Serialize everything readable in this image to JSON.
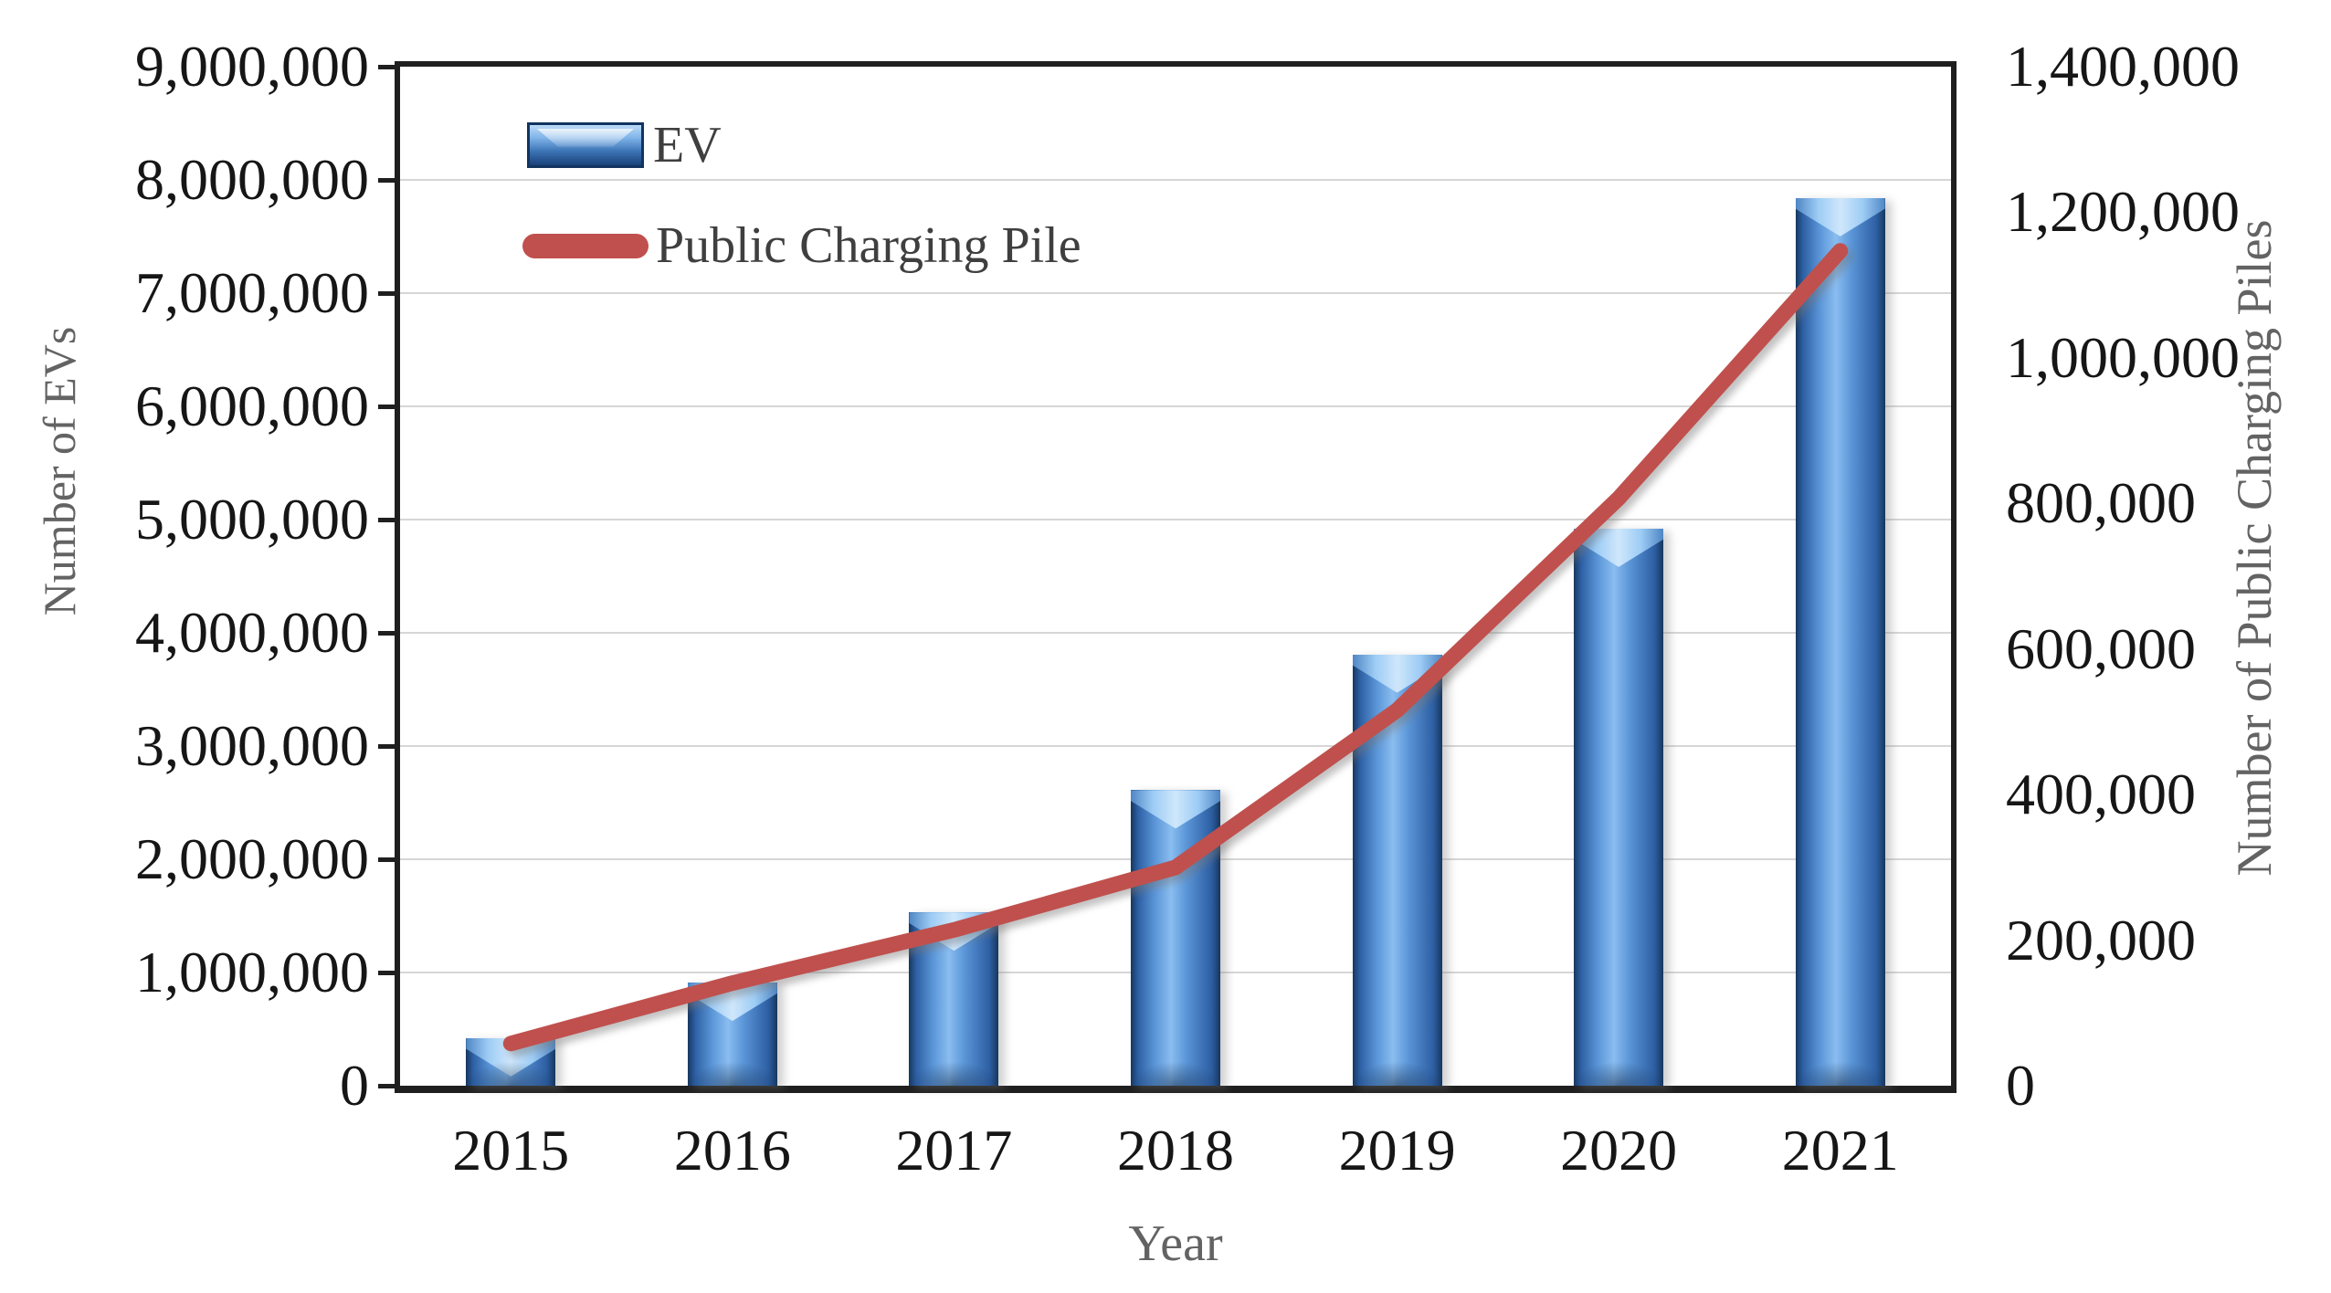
{
  "chart_data": {
    "type": "combo-bar-line",
    "title": "",
    "categories": [
      "2015",
      "2016",
      "2017",
      "2018",
      "2019",
      "2020",
      "2021"
    ],
    "series": [
      {
        "name": "EV",
        "type": "bar",
        "axis": "left",
        "color": "#3f76c0",
        "values": [
          420000,
          910000,
          1530000,
          2610000,
          3810000,
          4920000,
          7840000
        ]
      },
      {
        "name": "Public Charging Pile",
        "type": "line",
        "axis": "right",
        "color": "#c0504d",
        "values": [
          57900,
          141000,
          214000,
          300000,
          516000,
          807000,
          1147000
        ]
      }
    ],
    "left_axis": {
      "title": "Number of EVs",
      "min": 0,
      "max": 9000000,
      "step": 1000000,
      "tick_labels_top_to_bottom": [
        "9,000,000",
        "8,000,000",
        "7,000,000",
        "6,000,000",
        "5,000,000",
        "4,000,000",
        "3,000,000",
        "2,000,000",
        "1,000,000",
        "0"
      ]
    },
    "right_axis": {
      "title": "Number of Public Charging Piles",
      "min": 0,
      "max": 1400000,
      "step": 200000,
      "tick_labels_top_to_bottom": [
        "1,400,000",
        "1,200,000",
        "1,000,000",
        "800,000",
        "600,000",
        "400,000",
        "200,000",
        "0"
      ]
    },
    "x_axis": {
      "title": "Year"
    },
    "legend": {
      "position": "top-left-inside",
      "items": [
        {
          "label": "EV",
          "swatch": "bar-blue"
        },
        {
          "label": "Public Charging Pile",
          "swatch": "line-red"
        }
      ]
    },
    "grid": true,
    "colors": {
      "bar_blue_mid": "#4f8ad2",
      "bar_blue_light": "#8abdf0",
      "bar_blue_dark": "#17375e",
      "line_red": "#c0504d",
      "gridline": "#d6d6d6",
      "plot_border": "#1f1f1f",
      "tick_label": "#161616",
      "axis_title_gray": "#636363",
      "legend_text": "#3f3f3f"
    }
  }
}
